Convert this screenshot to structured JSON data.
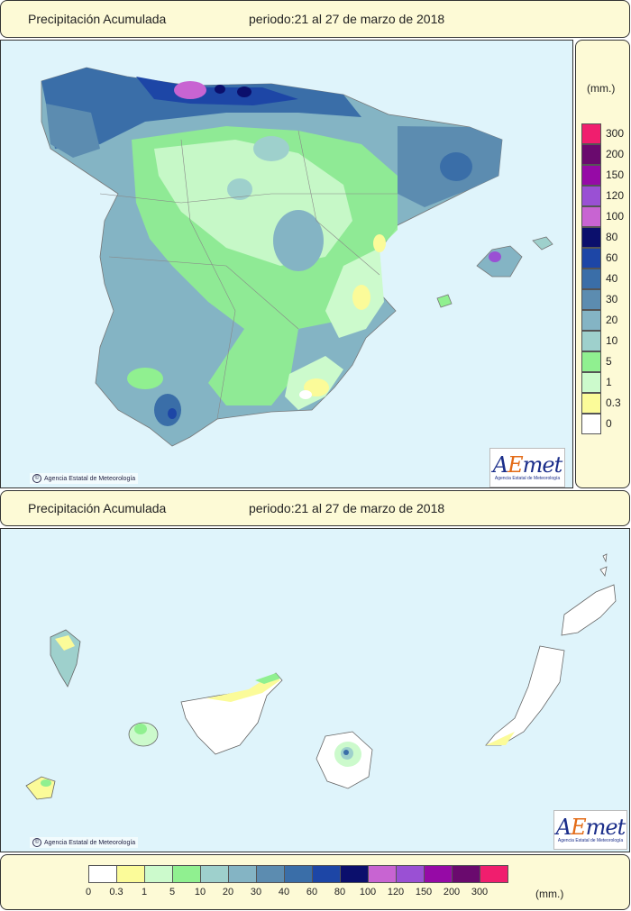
{
  "top_title": {
    "label": "Precipitación Acumulada",
    "period": "periodo:21 al 27 de marzo de 2018"
  },
  "bottom_title": {
    "label": "Precipitación Acumulada",
    "period": "periodo:21 al 27 de marzo de 2018"
  },
  "credit": "Agencia Estatal de Meteorología",
  "logo": {
    "word_a": "A",
    "word_e": "E",
    "word_rest": "met",
    "sub": "Agencia Estatal de Meteorología"
  },
  "unit": "(mm.)",
  "legend": [
    {
      "label": "0",
      "color": "#ffffff"
    },
    {
      "label": "0.3",
      "color": "#fbfb99"
    },
    {
      "label": "1",
      "color": "#ccfacc"
    },
    {
      "label": "5",
      "color": "#90f090"
    },
    {
      "label": "10",
      "color": "#9ed0cc"
    },
    {
      "label": "20",
      "color": "#84b4c4"
    },
    {
      "label": "30",
      "color": "#5c8cb0"
    },
    {
      "label": "40",
      "color": "#3a6ea8"
    },
    {
      "label": "60",
      "color": "#1d46a6"
    },
    {
      "label": "80",
      "color": "#0b0f6c"
    },
    {
      "label": "100",
      "color": "#c864d2"
    },
    {
      "label": "120",
      "color": "#9a50d4"
    },
    {
      "label": "150",
      "color": "#960aa6"
    },
    {
      "label": "200",
      "color": "#6a0a6e"
    },
    {
      "label": "300",
      "color": "#f01e6e"
    }
  ]
}
